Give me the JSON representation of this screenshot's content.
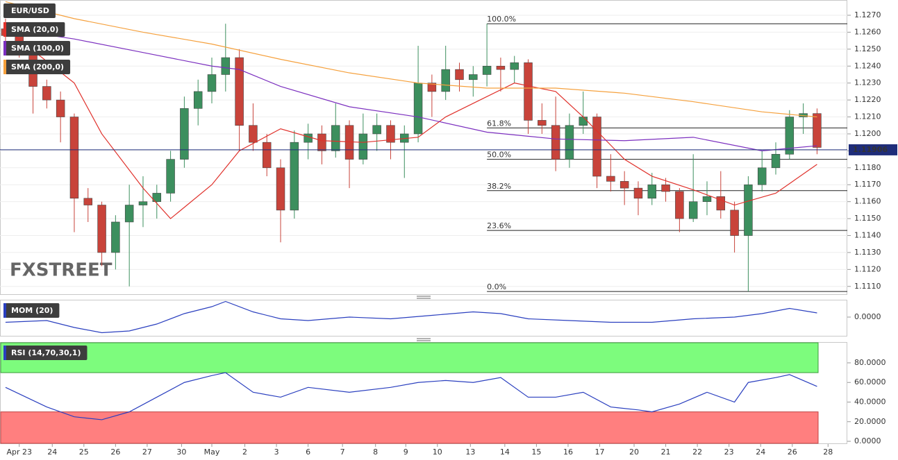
{
  "chart_data": [
    {
      "type": "candlestick",
      "title": "EUR/USD",
      "logo": "FXSTREET",
      "xlim": [
        -0.4,
        61.2
      ],
      "ylim": [
        1.1105,
        1.1279
      ],
      "grid": true,
      "bull_color": "#3c8f5e",
      "bear_color": "#c8433a",
      "yticks": [
        {
          "value": 1.111,
          "label": "1.1110"
        },
        {
          "value": 1.112,
          "label": "1.1120"
        },
        {
          "value": 1.113,
          "label": "1.1130"
        },
        {
          "value": 1.114,
          "label": "1.1140"
        },
        {
          "value": 1.115,
          "label": "1.1150"
        },
        {
          "value": 1.116,
          "label": "1.1160"
        },
        {
          "value": 1.117,
          "label": "1.1170"
        },
        {
          "value": 1.118,
          "label": "1.1180"
        },
        {
          "value": 1.119,
          "label": "1.1190"
        },
        {
          "value": 1.12,
          "label": "1.1200"
        },
        {
          "value": 1.121,
          "label": "1.1210"
        },
        {
          "value": 1.122,
          "label": "1.1220"
        },
        {
          "value": 1.123,
          "label": "1.1230"
        },
        {
          "value": 1.124,
          "label": "1.1240"
        },
        {
          "value": 1.125,
          "label": "1.1250"
        },
        {
          "value": 1.126,
          "label": "1.1260"
        },
        {
          "value": 1.127,
          "label": "1.1270"
        }
      ],
      "x": [
        0,
        1,
        2,
        3,
        4,
        5,
        6,
        7,
        8,
        9,
        10,
        11,
        12,
        13,
        14,
        15,
        16,
        17,
        18,
        19,
        20,
        21,
        22,
        23,
        24,
        25,
        26,
        27,
        28,
        29,
        30,
        31,
        32,
        33,
        34,
        35,
        36,
        37,
        38,
        39,
        40,
        41,
        42,
        43,
        44,
        45,
        46,
        47,
        48,
        49,
        50,
        51,
        52,
        53,
        54,
        55,
        56,
        57,
        58,
        59
      ],
      "candles": [
        [
          1.1262,
          1.1268,
          1.125,
          1.1258
        ],
        [
          1.1258,
          1.1265,
          1.1245,
          1.125
        ],
        [
          1.125,
          1.1252,
          1.1212,
          1.1228
        ],
        [
          1.1228,
          1.1232,
          1.1215,
          1.122
        ],
        [
          1.122,
          1.1225,
          1.1195,
          1.121
        ],
        [
          1.121,
          1.1212,
          1.1142,
          1.1162
        ],
        [
          1.1162,
          1.1168,
          1.1148,
          1.1158
        ],
        [
          1.1158,
          1.116,
          1.1122,
          1.113
        ],
        [
          1.113,
          1.1152,
          1.112,
          1.1148
        ],
        [
          1.1148,
          1.117,
          1.111,
          1.1158
        ],
        [
          1.1158,
          1.1175,
          1.1145,
          1.116
        ],
        [
          1.116,
          1.117,
          1.115,
          1.1165
        ],
        [
          1.1165,
          1.119,
          1.116,
          1.1185
        ],
        [
          1.1185,
          1.1222,
          1.118,
          1.1215
        ],
        [
          1.1215,
          1.1232,
          1.1205,
          1.1225
        ],
        [
          1.1225,
          1.1245,
          1.1218,
          1.1235
        ],
        [
          1.1235,
          1.1265,
          1.1225,
          1.1245
        ],
        [
          1.1245,
          1.125,
          1.119,
          1.1205
        ],
        [
          1.1205,
          1.1218,
          1.119,
          1.1195
        ],
        [
          1.1195,
          1.12,
          1.1175,
          1.118
        ],
        [
          1.118,
          1.1185,
          1.1136,
          1.1155
        ],
        [
          1.1155,
          1.1202,
          1.115,
          1.1195
        ],
        [
          1.1195,
          1.1206,
          1.1185,
          1.12
        ],
        [
          1.12,
          1.1205,
          1.1182,
          1.119
        ],
        [
          1.119,
          1.1218,
          1.1186,
          1.1205
        ],
        [
          1.1205,
          1.1208,
          1.1168,
          1.1185
        ],
        [
          1.1185,
          1.1212,
          1.1182,
          1.12
        ],
        [
          1.12,
          1.1212,
          1.119,
          1.1205
        ],
        [
          1.1205,
          1.1208,
          1.1185,
          1.1195
        ],
        [
          1.1195,
          1.1205,
          1.1174,
          1.12
        ],
        [
          1.12,
          1.1252,
          1.1195,
          1.123
        ],
        [
          1.123,
          1.1235,
          1.121,
          1.1225
        ],
        [
          1.1225,
          1.1252,
          1.122,
          1.1238
        ],
        [
          1.1238,
          1.1242,
          1.1225,
          1.1232
        ],
        [
          1.1232,
          1.124,
          1.1222,
          1.1235
        ],
        [
          1.1235,
          1.1265,
          1.1228,
          1.124
        ],
        [
          1.124,
          1.1245,
          1.1225,
          1.1238
        ],
        [
          1.1238,
          1.1246,
          1.123,
          1.1242
        ],
        [
          1.1242,
          1.1244,
          1.12,
          1.1208
        ],
        [
          1.1208,
          1.1218,
          1.12,
          1.1205
        ],
        [
          1.1205,
          1.1222,
          1.1178,
          1.1185
        ],
        [
          1.1185,
          1.1212,
          1.118,
          1.1205
        ],
        [
          1.1205,
          1.1225,
          1.12,
          1.121
        ],
        [
          1.121,
          1.1212,
          1.1168,
          1.1175
        ],
        [
          1.1175,
          1.1188,
          1.1166,
          1.1172
        ],
        [
          1.1172,
          1.1178,
          1.1158,
          1.1168
        ],
        [
          1.1168,
          1.1172,
          1.1152,
          1.1162
        ],
        [
          1.1162,
          1.1177,
          1.1158,
          1.117
        ],
        [
          1.117,
          1.1174,
          1.116,
          1.1166
        ],
        [
          1.1166,
          1.1168,
          1.1142,
          1.115
        ],
        [
          1.115,
          1.1188,
          1.1148,
          1.116
        ],
        [
          1.116,
          1.1172,
          1.1152,
          1.1163
        ],
        [
          1.1163,
          1.1178,
          1.115,
          1.1155
        ],
        [
          1.1155,
          1.116,
          1.113,
          1.114
        ],
        [
          1.114,
          1.1175,
          1.1107,
          1.117
        ],
        [
          1.117,
          1.119,
          1.1166,
          1.118
        ],
        [
          1.118,
          1.1195,
          1.1176,
          1.1188
        ],
        [
          1.1188,
          1.1214,
          1.1185,
          1.121
        ],
        [
          1.121,
          1.1218,
          1.12,
          1.1212
        ],
        [
          1.1212,
          1.1215,
          1.1188,
          1.1192
        ]
      ],
      "series": [
        {
          "name": "SMA (20,0)",
          "color": "#e0312b",
          "x": [
            0,
            5,
            7,
            10,
            12,
            15,
            17,
            20,
            23,
            26,
            30,
            32,
            35,
            37,
            40,
            42,
            45,
            47,
            50,
            53,
            56,
            59
          ],
          "values": [
            1.1262,
            1.123,
            1.12,
            1.1168,
            1.115,
            1.117,
            1.119,
            1.1203,
            1.1196,
            1.1195,
            1.1198,
            1.121,
            1.1222,
            1.123,
            1.1225,
            1.121,
            1.1185,
            1.1175,
            1.1167,
            1.1158,
            1.1165,
            1.1182
          ]
        },
        {
          "name": "SMA (100,0)",
          "color": "#7b2fbf",
          "x": [
            0,
            5,
            10,
            15,
            17,
            20,
            25,
            30,
            35,
            40,
            45,
            50,
            55,
            59
          ],
          "values": [
            1.1262,
            1.1256,
            1.1248,
            1.124,
            1.1238,
            1.1228,
            1.1216,
            1.121,
            1.1201,
            1.1197,
            1.1196,
            1.1198,
            1.119,
            1.1193
          ]
        },
        {
          "name": "SMA (200,0)",
          "color": "#f5a03c",
          "x": [
            0,
            5,
            10,
            15,
            20,
            25,
            30,
            35,
            40,
            45,
            50,
            55,
            59
          ],
          "values": [
            1.1278,
            1.1268,
            1.126,
            1.1253,
            1.1244,
            1.1236,
            1.123,
            1.1227,
            1.1227,
            1.1224,
            1.1219,
            1.1213,
            1.121
          ]
        }
      ],
      "fib_from_x": 35,
      "fib_levels": [
        {
          "label": "100.0%",
          "value": 1.1265
        },
        {
          "label": "61.8%",
          "value": 1.12035
        },
        {
          "label": "50.0%",
          "value": 1.1185
        },
        {
          "label": "38.2%",
          "value": 1.11665
        },
        {
          "label": "23.6%",
          "value": 1.1143
        },
        {
          "label": "0.0%",
          "value": 1.1107
        }
      ],
      "last_price": 1.11906,
      "last_price_color": "#1f2d7a"
    },
    {
      "type": "line",
      "xlim": [
        -0.4,
        61.2
      ],
      "ylim": [
        -0.0056,
        0.005
      ],
      "yticks": [
        {
          "value": 0,
          "label": "0.0000"
        }
      ],
      "series": [
        {
          "name": "MOM (20)",
          "color": "#2a3fbf",
          "x": [
            0,
            3,
            5,
            7,
            9,
            11,
            13,
            15,
            16,
            18,
            20,
            22,
            25,
            28,
            31,
            34,
            36,
            38,
            41,
            44,
            47,
            50,
            53,
            55,
            57,
            59
          ],
          "values": [
            -0.0015,
            -0.001,
            -0.003,
            -0.0045,
            -0.004,
            -0.002,
            0.001,
            0.003,
            0.0045,
            0.0015,
            -0.0005,
            -0.001,
            0,
            -0.0005,
            0.0005,
            0.0015,
            0.001,
            -0.0005,
            -0.001,
            -0.0015,
            -0.0015,
            -0.0005,
            0,
            0.001,
            0.0025,
            0.0012
          ]
        }
      ]
    },
    {
      "type": "line",
      "xlim": [
        -0.4,
        61.2
      ],
      "ylim": [
        -2.8,
        101.2
      ],
      "overbought": 70,
      "oversold": 30,
      "overbought_color": "#7dfc7d",
      "oversold_color": "#ff7f7f",
      "yticks": [
        {
          "value": 0,
          "label": "0.0000"
        },
        {
          "value": 20,
          "label": "20.0000"
        },
        {
          "value": 40,
          "label": "40.0000"
        },
        {
          "value": 60,
          "label": "60.0000"
        },
        {
          "value": 80,
          "label": "80.0000"
        }
      ],
      "series": [
        {
          "name": "RSI (14,70,30,1)",
          "color": "#2a3fbf",
          "x": [
            0,
            3,
            5,
            7,
            9,
            11,
            13,
            15,
            16,
            18,
            20,
            22,
            25,
            28,
            30,
            32,
            34,
            36,
            38,
            40,
            42,
            44,
            46,
            47,
            49,
            51,
            53,
            54,
            56,
            57,
            59
          ],
          "values": [
            55,
            35,
            25,
            22,
            30,
            45,
            60,
            67,
            70,
            50,
            45,
            55,
            50,
            55,
            60,
            62,
            60,
            65,
            45,
            45,
            50,
            35,
            32,
            30,
            38,
            50,
            40,
            60,
            65,
            68,
            56
          ]
        }
      ],
      "xticks": [
        {
          "value": 1.0,
          "label": "Apr 23"
        },
        {
          "value": 3.4,
          "label": "24"
        },
        {
          "value": 5.7,
          "label": "25"
        },
        {
          "value": 8.0,
          "label": "26"
        },
        {
          "value": 10.3,
          "label": "27"
        },
        {
          "value": 12.8,
          "label": "30"
        },
        {
          "value": 15.0,
          "label": "May"
        },
        {
          "value": 17.4,
          "label": "2"
        },
        {
          "value": 19.7,
          "label": "3"
        },
        {
          "value": 22.0,
          "label": "6"
        },
        {
          "value": 24.5,
          "label": "7"
        },
        {
          "value": 26.9,
          "label": "8"
        },
        {
          "value": 29.1,
          "label": "9"
        },
        {
          "value": 31.4,
          "label": "10"
        },
        {
          "value": 33.8,
          "label": "13"
        },
        {
          "value": 36.3,
          "label": "14"
        },
        {
          "value": 38.6,
          "label": "15"
        },
        {
          "value": 40.9,
          "label": "16"
        },
        {
          "value": 43.2,
          "label": "17"
        },
        {
          "value": 45.7,
          "label": "20"
        },
        {
          "value": 48.0,
          "label": "21"
        },
        {
          "value": 50.3,
          "label": "22"
        },
        {
          "value": 52.6,
          "label": "23"
        },
        {
          "value": 54.9,
          "label": "24"
        },
        {
          "value": 57.2,
          "label": "26"
        },
        {
          "value": 59.8,
          "label": "28"
        }
      ]
    }
  ]
}
